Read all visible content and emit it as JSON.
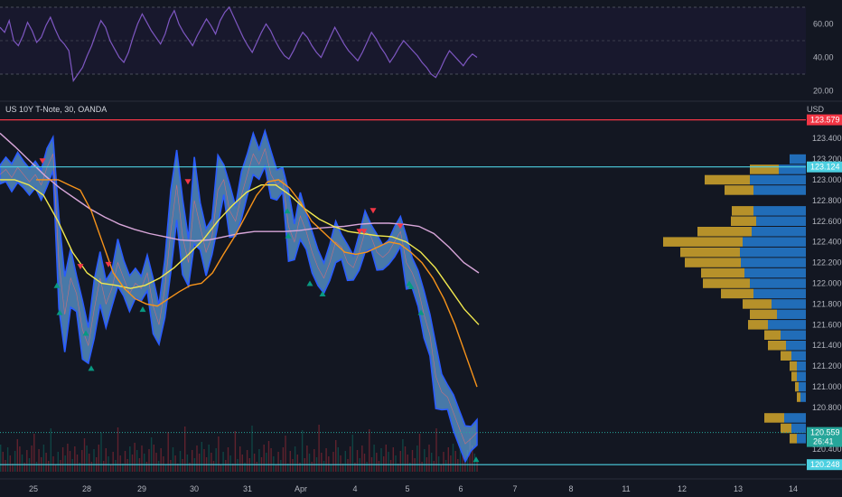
{
  "symbol_title": "US 10Y T-Note, 30, OANDA",
  "currency": "USD",
  "colors": {
    "background": "#131722",
    "grid": "#1c2030",
    "price_fill": "#5b9bd5",
    "price_edge": "#2a5cff",
    "ma_fast": "#f7931a",
    "ma_slow": "#f2e94e",
    "ma_long": "#d8a6d9",
    "rsi": "#7e57c2",
    "resistance": "#f23645",
    "level": "#4dd0e1",
    "sell_marker": "#f23645",
    "buy_marker": "#089981",
    "vp_up": "#d4a72c",
    "vp_down": "#2377c9"
  },
  "x_axis_labels": [
    "25",
    "28",
    "29",
    "30",
    "31",
    "Apr",
    "4",
    "5",
    "6",
    "7",
    "8",
    "11",
    "12",
    "13",
    "14"
  ],
  "rsi": {
    "ticks": [
      "60.00",
      "40.00",
      "20.00"
    ],
    "levels": [
      70,
      30
    ],
    "values": [
      58,
      55,
      62,
      50,
      47,
      53,
      61,
      56,
      49,
      52,
      59,
      64,
      57,
      51,
      48,
      44,
      26,
      30,
      34,
      41,
      47,
      55,
      62,
      58,
      50,
      45,
      40,
      37,
      43,
      52,
      60,
      66,
      61,
      56,
      52,
      48,
      54,
      63,
      68,
      60,
      55,
      51,
      47,
      53,
      58,
      63,
      59,
      54,
      62,
      67,
      70,
      64,
      58,
      52,
      47,
      43,
      49,
      55,
      60,
      56,
      50,
      45,
      41,
      39,
      44,
      50,
      55,
      52,
      47,
      43,
      40,
      46,
      52,
      58,
      53,
      48,
      44,
      41,
      38,
      43,
      49,
      55,
      51,
      46,
      42,
      37,
      41,
      46,
      50,
      47,
      44,
      41,
      37,
      34,
      30,
      28,
      33,
      39,
      44,
      41,
      38,
      35,
      39,
      42,
      40
    ]
  },
  "price": {
    "ticks": [
      "123.400",
      "123.200",
      "123.000",
      "122.800",
      "122.600",
      "122.400",
      "122.200",
      "122.000",
      "121.800",
      "121.600",
      "121.400",
      "121.200",
      "121.000",
      "120.800",
      "120.400"
    ],
    "tick_values": [
      123.4,
      123.2,
      123.0,
      122.8,
      122.6,
      122.4,
      122.2,
      122.0,
      121.8,
      121.6,
      121.4,
      121.2,
      121.0,
      120.8,
      120.4
    ],
    "range": [
      120.18,
      123.75
    ],
    "close_series": [
      123.05,
      123.1,
      123.02,
      123.12,
      123.05,
      122.98,
      123.05,
      122.95,
      123.12,
      123.25,
      122.2,
      121.7,
      122.05,
      121.9,
      121.55,
      121.4,
      121.75,
      122.05,
      121.8,
      121.95,
      122.2,
      122.05,
      121.9,
      122.0,
      121.95,
      122.1,
      121.78,
      121.6,
      121.95,
      122.5,
      122.95,
      122.45,
      122.2,
      122.8,
      122.55,
      122.3,
      122.45,
      122.9,
      123.0,
      122.7,
      122.6,
      122.85,
      123.05,
      123.25,
      123.15,
      123.3,
      123.05,
      122.95,
      123.0,
      122.55,
      122.4,
      122.65,
      122.5,
      122.3,
      122.15,
      122.05,
      122.2,
      122.4,
      122.35,
      122.2,
      122.15,
      122.3,
      122.5,
      122.45,
      122.3,
      122.25,
      122.3,
      122.4,
      122.5,
      122.2,
      122.1,
      121.95,
      121.7,
      121.5,
      121.1,
      120.95,
      120.9,
      120.75,
      120.6,
      120.45,
      120.5,
      120.56
    ],
    "ma_fast": [
      123.0,
      123.0,
      123.0,
      122.95,
      122.9,
      122.7,
      122.4,
      122.1,
      121.95,
      121.85,
      121.8,
      121.78,
      121.85,
      121.92,
      121.98,
      122.0,
      122.1,
      122.28,
      122.45,
      122.65,
      122.85,
      122.98,
      123.0,
      122.92,
      122.78,
      122.6,
      122.5,
      122.4,
      122.3,
      122.28,
      122.3,
      122.35,
      122.4,
      122.38,
      122.3,
      122.2,
      122.05,
      121.85,
      121.6,
      121.3,
      121.0
    ],
    "ma_slow": [
      123.0,
      123.0,
      122.95,
      122.85,
      122.6,
      122.3,
      122.1,
      122.0,
      121.98,
      121.95,
      121.98,
      122.05,
      122.15,
      122.28,
      122.42,
      122.6,
      122.75,
      122.88,
      122.95,
      122.95,
      122.85,
      122.72,
      122.62,
      122.55,
      122.5,
      122.48,
      122.46,
      122.45,
      122.4,
      122.3,
      122.15,
      121.95,
      121.75,
      121.6
    ],
    "ma_long": [
      123.45,
      123.32,
      123.18,
      123.04,
      122.92,
      122.82,
      122.72,
      122.64,
      122.57,
      122.52,
      122.48,
      122.45,
      122.42,
      122.41,
      122.42,
      122.45,
      122.48,
      122.5,
      122.5,
      122.5,
      122.51,
      122.53,
      122.54,
      122.55,
      122.57,
      122.58,
      122.58,
      122.57,
      122.55,
      122.48,
      122.35,
      122.2,
      122.1
    ],
    "sell_markers": [
      [
        47,
        123.18
      ],
      [
        89,
        122.16
      ],
      [
        120,
        122.18
      ],
      [
        208,
        122.98
      ],
      [
        413,
        122.7
      ],
      [
        398,
        122.5
      ],
      [
        403,
        122.5
      ],
      [
        443,
        122.55
      ]
    ],
    "buy_markers": [
      [
        63,
        121.98
      ],
      [
        66,
        121.72
      ],
      [
        95,
        121.52
      ],
      [
        101,
        121.18
      ],
      [
        158,
        121.75
      ],
      [
        318,
        122.7
      ],
      [
        319,
        122.46
      ],
      [
        343,
        122.0
      ],
      [
        357,
        121.9
      ],
      [
        453,
        122.0
      ],
      [
        455,
        121.97
      ],
      [
        466,
        121.72
      ],
      [
        527,
        120.3
      ]
    ]
  },
  "levels": [
    {
      "name": "resistance",
      "value": 123.579,
      "label": "123.579"
    },
    {
      "name": "upper-level",
      "value": 123.124,
      "label": "123.124"
    },
    {
      "name": "lower-level",
      "value": 120.248,
      "label": "120.248"
    }
  ],
  "current_price": {
    "value": 120.559,
    "label": "120.559",
    "timer": "26:41"
  },
  "volume_profile": [
    {
      "price": 123.2,
      "up": 0,
      "down": 18
    },
    {
      "price": 123.1,
      "up": 32,
      "down": 30
    },
    {
      "price": 123.0,
      "up": 50,
      "down": 62
    },
    {
      "price": 122.9,
      "up": 32,
      "down": 58
    },
    {
      "price": 122.7,
      "up": 24,
      "down": 58
    },
    {
      "price": 122.6,
      "up": 28,
      "down": 55
    },
    {
      "price": 122.5,
      "up": 60,
      "down": 60
    },
    {
      "price": 122.4,
      "up": 88,
      "down": 70
    },
    {
      "price": 122.3,
      "up": 66,
      "down": 73
    },
    {
      "price": 122.2,
      "up": 62,
      "down": 72
    },
    {
      "price": 122.1,
      "up": 48,
      "down": 68
    },
    {
      "price": 122.0,
      "up": 52,
      "down": 62
    },
    {
      "price": 121.9,
      "up": 36,
      "down": 58
    },
    {
      "price": 121.8,
      "up": 32,
      "down": 38
    },
    {
      "price": 121.7,
      "up": 30,
      "down": 32
    },
    {
      "price": 121.6,
      "up": 22,
      "down": 42
    },
    {
      "price": 121.5,
      "up": 18,
      "down": 28
    },
    {
      "price": 121.4,
      "up": 20,
      "down": 22
    },
    {
      "price": 121.3,
      "up": 12,
      "down": 16
    },
    {
      "price": 121.2,
      "up": 8,
      "down": 10
    },
    {
      "price": 121.1,
      "up": 6,
      "down": 10
    },
    {
      "price": 121.0,
      "up": 4,
      "down": 8
    },
    {
      "price": 120.9,
      "up": 4,
      "down": 6
    },
    {
      "price": 120.7,
      "up": 22,
      "down": 24
    },
    {
      "price": 120.6,
      "up": 12,
      "down": 16
    },
    {
      "price": 120.5,
      "up": 8,
      "down": 10
    }
  ]
}
